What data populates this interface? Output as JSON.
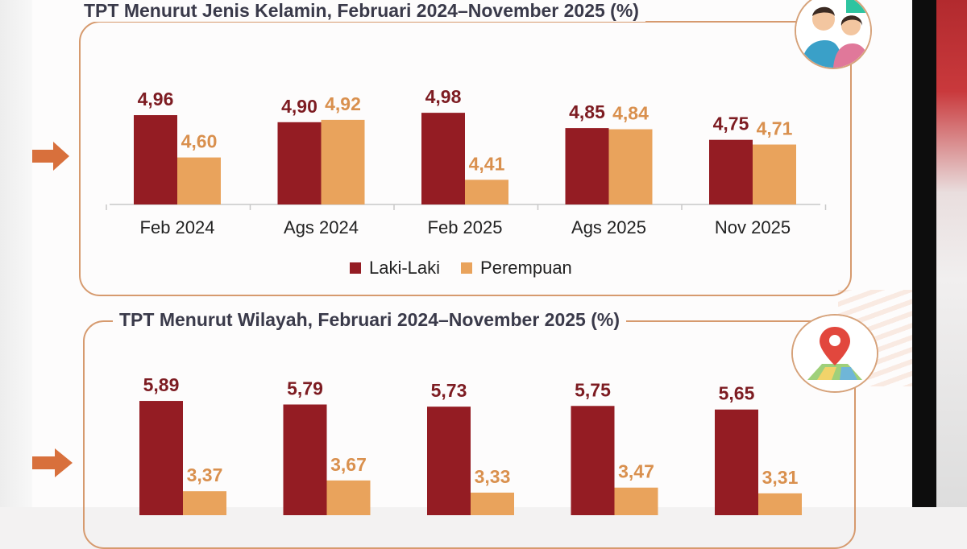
{
  "colors": {
    "laki": "#941c23",
    "perempuan": "#e9a35c",
    "laki_text": "#7d1c22",
    "perempuan_text": "#d9904e",
    "frame": "#d69a6e"
  },
  "icons": {
    "gender": "people-icon",
    "region": "map-pin-icon",
    "arrow": "arrow-right-icon"
  },
  "chart_data": [
    {
      "type": "bar",
      "title": "TPT Menurut Jenis Kelamin, Februari 2024–November 2025 (%)",
      "categories": [
        "Feb 2024",
        "Ags 2024",
        "Feb 2025",
        "Ags 2025",
        "Nov 2025"
      ],
      "series": [
        {
          "name": "Laki-Laki",
          "values": [
            4.96,
            4.9,
            4.98,
            4.85,
            4.75
          ],
          "labels": [
            "4,96",
            "4,90",
            "4,98",
            "4,85",
            "4,75"
          ]
        },
        {
          "name": "Perempuan",
          "values": [
            4.6,
            4.92,
            4.41,
            4.84,
            4.71
          ],
          "labels": [
            "4,60",
            "4,92",
            "4,41",
            "4,84",
            "4,71"
          ]
        }
      ],
      "legend": "bottom-center"
    },
    {
      "type": "bar",
      "title": "TPT Menurut Wilayah, Februari 2024–November 2025 (%)",
      "series": [
        {
          "values": [
            5.89,
            5.79,
            5.73,
            5.75,
            5.65
          ],
          "labels": [
            "5,89",
            "5,79",
            "5,73",
            "5,75",
            "5,65"
          ]
        },
        {
          "values": [
            3.37,
            3.67,
            3.33,
            3.47,
            3.31
          ],
          "labels": [
            "3,37",
            "3,67",
            "3,33",
            "3,47",
            "3,31"
          ]
        }
      ]
    }
  ]
}
